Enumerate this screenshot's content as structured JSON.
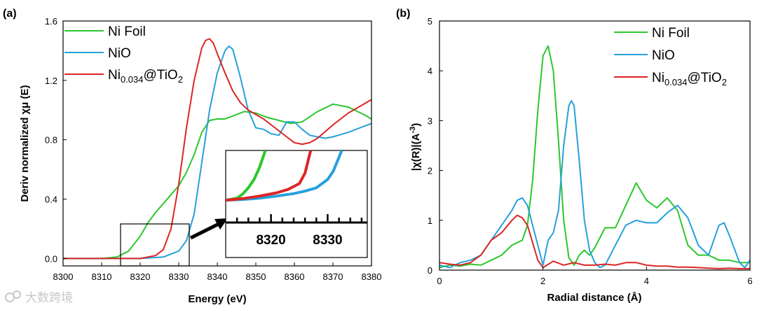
{
  "colors": {
    "ni_foil": "#2cc72c",
    "nio": "#27a0dc",
    "ni_tio2": "#dd2525"
  },
  "watermark": "大数跨境",
  "chart_data": [
    {
      "panel": "(a)",
      "type": "line",
      "title": "",
      "xlabel": "Energy (eV)",
      "ylabel": "Deriv normalized χμ (E)",
      "xlim": [
        8300,
        8380
      ],
      "ylim": [
        -0.05,
        1.6
      ],
      "xticks": [
        "8300",
        "8310",
        "8320",
        "8330",
        "8340",
        "8350",
        "8360",
        "8370",
        "8380"
      ],
      "yticks": [
        "0.0",
        "0.4",
        "0.8",
        "1.2",
        "1.6"
      ],
      "legend": {
        "position": "top-left",
        "entries": [
          {
            "key": "ni_foil",
            "base": "Ni Foil",
            "sub": "",
            "tail": "",
            "sub2": ""
          },
          {
            "key": "nio",
            "base": "NiO",
            "sub": "",
            "tail": "",
            "sub2": ""
          },
          {
            "key": "ni_tio2",
            "base": "Ni",
            "sub": "0.034",
            "tail": "@TiO",
            "sub2": "2"
          }
        ]
      },
      "series": [
        {
          "name": "Ni Foil",
          "x": [
            8300,
            8310,
            8314,
            8317,
            8320,
            8322,
            8324,
            8326,
            8328,
            8330,
            8332,
            8334,
            8336,
            8338,
            8340,
            8342,
            8344,
            8347,
            8350,
            8353,
            8356,
            8359,
            8362,
            8366,
            8370,
            8374,
            8378,
            8380
          ],
          "y": [
            0,
            0,
            0.01,
            0.05,
            0.15,
            0.24,
            0.31,
            0.37,
            0.43,
            0.49,
            0.58,
            0.7,
            0.85,
            0.93,
            0.94,
            0.94,
            0.96,
            0.99,
            0.98,
            0.95,
            0.93,
            0.91,
            0.92,
            0.99,
            1.04,
            1.02,
            0.97,
            0.94
          ]
        },
        {
          "name": "NiO",
          "x": [
            8300,
            8320,
            8326,
            8330,
            8332,
            8334,
            8336,
            8338,
            8340,
            8342,
            8343,
            8344,
            8346,
            8348,
            8350,
            8352,
            8354,
            8356,
            8358,
            8360,
            8362,
            8364,
            8366,
            8368,
            8370,
            8374,
            8378,
            8380
          ],
          "y": [
            0,
            0,
            0.01,
            0.05,
            0.12,
            0.3,
            0.65,
            1.0,
            1.25,
            1.4,
            1.43,
            1.41,
            1.22,
            1.0,
            0.88,
            0.87,
            0.84,
            0.83,
            0.92,
            0.92,
            0.87,
            0.83,
            0.82,
            0.81,
            0.82,
            0.85,
            0.89,
            0.91
          ]
        },
        {
          "name": "Ni0.034@TiO2",
          "x": [
            8300,
            8320,
            8324,
            8326,
            8328,
            8330,
            8332,
            8334,
            8336,
            8337,
            8338,
            8339,
            8340,
            8342,
            8344,
            8346,
            8348,
            8350,
            8352,
            8354,
            8356,
            8358,
            8360,
            8362,
            8364,
            8366,
            8370,
            8374,
            8378,
            8380
          ],
          "y": [
            0,
            0,
            0.02,
            0.06,
            0.2,
            0.5,
            0.88,
            1.2,
            1.42,
            1.47,
            1.48,
            1.45,
            1.38,
            1.25,
            1.13,
            1.05,
            1.0,
            0.97,
            0.94,
            0.9,
            0.86,
            0.82,
            0.78,
            0.77,
            0.78,
            0.81,
            0.9,
            0.98,
            1.04,
            1.07
          ]
        }
      ],
      "inset": {
        "xlim": [
          8312,
          8337
        ],
        "xticks": [
          "8320",
          "8330"
        ],
        "tick_values": [
          8320,
          8330
        ],
        "series": [
          {
            "name": "Ni Foil",
            "x": [
              8312,
              8314,
              8315,
              8316,
              8317,
              8318,
              8318.5,
              8319
            ],
            "y": [
              0.02,
              0.025,
              0.035,
              0.05,
              0.07,
              0.1,
              0.12,
              0.14
            ]
          },
          {
            "name": "NiO",
            "x": [
              8312,
              8315,
              8318,
              8321,
              8324,
              8326,
              8328,
              8330,
              8331,
              8332.5
            ],
            "y": [
              0.02,
              0.022,
              0.025,
              0.03,
              0.036,
              0.042,
              0.05,
              0.07,
              0.09,
              0.14
            ]
          },
          {
            "name": "Ni0.034@TiO2",
            "x": [
              8312,
              8315,
              8318,
              8321,
              8323,
              8325,
              8326,
              8327
            ],
            "y": [
              0.02,
              0.024,
              0.03,
              0.038,
              0.046,
              0.06,
              0.085,
              0.14
            ]
          }
        ]
      }
    },
    {
      "panel": "(b)",
      "type": "line",
      "title": "",
      "xlabel": "Radial distance (Å)",
      "ylabel": "|χ(R)|(A^-3)",
      "ylabel_main": "|χ(R)|(A",
      "ylabel_sup": "-3",
      "ylabel_tail": ")",
      "xlim": [
        0,
        6
      ],
      "ylim": [
        0,
        5
      ],
      "xticks": [
        "0",
        "2",
        "4",
        "6"
      ],
      "yticks": [
        "0",
        "1",
        "2",
        "3",
        "4",
        "5"
      ],
      "legend": {
        "position": "top-right",
        "entries": [
          {
            "key": "ni_foil",
            "base": "Ni Foil",
            "sub": "",
            "tail": "",
            "sub2": ""
          },
          {
            "key": "nio",
            "base": "NiO",
            "sub": "",
            "tail": "",
            "sub2": ""
          },
          {
            "key": "ni_tio2",
            "base": "Ni",
            "sub": "0.034",
            "tail": "@TiO",
            "sub2": "2"
          }
        ]
      },
      "series": [
        {
          "name": "Ni Foil",
          "x": [
            0,
            0.2,
            0.4,
            0.6,
            0.8,
            1.0,
            1.2,
            1.4,
            1.6,
            1.7,
            1.8,
            1.9,
            2.0,
            2.1,
            2.2,
            2.3,
            2.4,
            2.5,
            2.6,
            2.7,
            2.8,
            2.9,
            3.0,
            3.2,
            3.4,
            3.6,
            3.8,
            4.0,
            4.2,
            4.4,
            4.6,
            4.8,
            5.0,
            5.2,
            5.4,
            5.6,
            5.8,
            6.0
          ],
          "y": [
            0.05,
            0.1,
            0.08,
            0.12,
            0.1,
            0.2,
            0.3,
            0.5,
            0.6,
            0.9,
            1.8,
            3.2,
            4.3,
            4.5,
            4.0,
            2.6,
            1.0,
            0.25,
            0.1,
            0.3,
            0.4,
            0.3,
            0.45,
            0.85,
            0.85,
            1.3,
            1.75,
            1.4,
            1.25,
            1.45,
            1.2,
            0.5,
            0.3,
            0.3,
            0.2,
            0.2,
            0.15,
            0.15
          ]
        },
        {
          "name": "NiO",
          "x": [
            0,
            0.2,
            0.4,
            0.6,
            0.8,
            1.0,
            1.2,
            1.4,
            1.5,
            1.6,
            1.7,
            1.8,
            1.9,
            2.0,
            2.1,
            2.2,
            2.3,
            2.4,
            2.5,
            2.55,
            2.6,
            2.7,
            2.8,
            2.9,
            3.0,
            3.1,
            3.2,
            3.4,
            3.6,
            3.8,
            4.0,
            4.2,
            4.4,
            4.6,
            4.8,
            5.0,
            5.2,
            5.4,
            5.5,
            5.6,
            5.8,
            5.9,
            6.0
          ],
          "y": [
            0.1,
            0.05,
            0.15,
            0.2,
            0.3,
            0.6,
            0.9,
            1.2,
            1.4,
            1.45,
            1.3,
            0.9,
            0.5,
            0.1,
            0.6,
            0.75,
            1.2,
            2.5,
            3.3,
            3.4,
            3.3,
            2.2,
            1.0,
            0.4,
            0.15,
            0.05,
            0.1,
            0.5,
            0.9,
            1.0,
            0.95,
            0.95,
            1.15,
            1.3,
            1.05,
            0.5,
            0.3,
            0.9,
            0.95,
            0.7,
            0.15,
            0.05,
            0.2
          ]
        },
        {
          "name": "Ni0.034@TiO2",
          "x": [
            0,
            0.2,
            0.4,
            0.6,
            0.8,
            1.0,
            1.2,
            1.4,
            1.5,
            1.6,
            1.7,
            1.8,
            1.9,
            2.0,
            2.2,
            2.4,
            2.6,
            2.8,
            3.0,
            3.2,
            3.4,
            3.6,
            3.8,
            4.0,
            4.2,
            4.4,
            4.6,
            4.8,
            5.0,
            5.2,
            5.4,
            5.6,
            5.8,
            6.0
          ],
          "y": [
            0.15,
            0.12,
            0.1,
            0.15,
            0.3,
            0.6,
            0.75,
            1.0,
            1.1,
            1.05,
            0.9,
            0.55,
            0.2,
            0.05,
            0.18,
            0.1,
            0.15,
            0.1,
            0.1,
            0.12,
            0.1,
            0.15,
            0.15,
            0.1,
            0.08,
            0.08,
            0.06,
            0.06,
            0.05,
            0.04,
            0.03,
            0.04,
            0.03,
            0.03
          ]
        }
      ]
    }
  ]
}
